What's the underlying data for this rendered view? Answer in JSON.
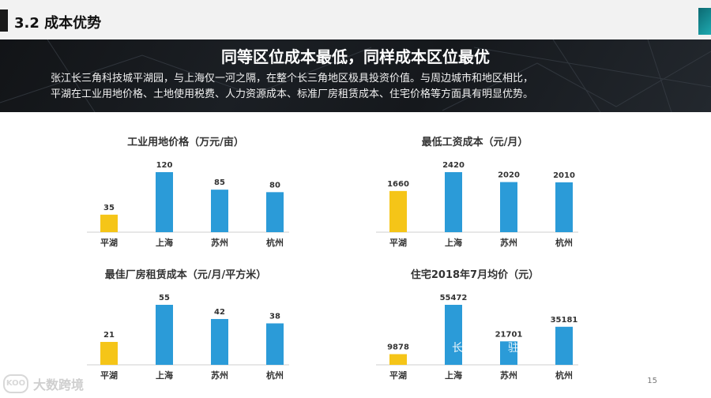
{
  "section_title": "3.2 成本优势",
  "banner": {
    "headline": "同等区位成本最低，同样成本区位最优",
    "description_line1": "张江长三角科技城平湖园，与上海仅一河之隔，在整个长三角地区极具投资价值。与周边城市和地区相比，",
    "description_line2": "平湖在工业用地价格、土地使用税费、人力资源成本、标准厂房租赁成本、住宅价格等方面具有明显优势。"
  },
  "colors": {
    "highlight": "#f5c518",
    "bar": "#2b9bd8"
  },
  "chart_data": [
    {
      "type": "bar",
      "title": "工业用地价格（万元/亩）",
      "categories": [
        "平湖",
        "上海",
        "苏州",
        "杭州"
      ],
      "values": [
        35,
        120,
        85,
        80
      ],
      "value_labels": [
        "35",
        "120",
        "85",
        "80"
      ],
      "ylim": [
        0,
        120
      ],
      "grid": false
    },
    {
      "type": "bar",
      "title": "最低工资成本（元/月）",
      "categories": [
        "平湖",
        "上海",
        "苏州",
        "杭州"
      ],
      "values": [
        1660,
        2420,
        2020,
        2010
      ],
      "value_labels": [
        "1660",
        "2420",
        "2020",
        "2010"
      ],
      "ylim": [
        0,
        2420
      ],
      "grid": false
    },
    {
      "type": "bar",
      "title": "最佳厂房租赁成本（元/月/平方米）",
      "categories": [
        "平湖",
        "上海",
        "苏州",
        "杭州"
      ],
      "values": [
        21,
        55,
        42,
        38
      ],
      "value_labels": [
        "21",
        "55",
        "42",
        "38"
      ],
      "ylim": [
        0,
        55
      ],
      "grid": false
    },
    {
      "type": "bar",
      "title": "住宅2018年7月均价（元）",
      "categories": [
        "平湖",
        "上海",
        "苏州",
        "杭州"
      ],
      "values": [
        9878,
        55472,
        21701,
        35181
      ],
      "value_labels": [
        "9878",
        "55472",
        "21701",
        "35181"
      ],
      "ylim": [
        0,
        55472
      ],
      "grid": false
    }
  ],
  "watermark": "长 业执 驻服",
  "logo_text": "大数跨境",
  "logo_mark": "KOO",
  "page_number": "15"
}
